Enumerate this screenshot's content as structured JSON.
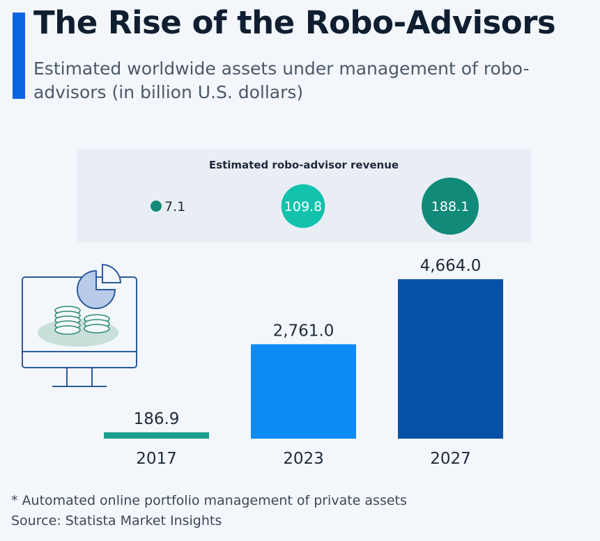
{
  "title": "The Rise of the Robo-Advisors",
  "subtitle": "Estimated worldwide assets under management of robo-advisors (in billion U.S. dollars)",
  "footnote": "* Automated online portfolio management of private assets",
  "source": "Source: Statista Market Insights",
  "colors": {
    "accent": "#0a66e0",
    "bar_2017": "#1d9e8c",
    "bar_2023": "#0d8bf5",
    "bar_2027": "#0451a8",
    "rev_2017": "#168a7a",
    "rev_2023": "#12c2ad",
    "rev_2027": "#128a7a"
  },
  "chart_data": [
    {
      "type": "bar",
      "title": "",
      "categories": [
        "2017",
        "2023",
        "2027"
      ],
      "values": [
        186.9,
        2761.0,
        4664.0
      ],
      "labels": [
        "186.9",
        "2,761.0",
        "4,664.0"
      ],
      "ylim": [
        0,
        4664.0
      ],
      "grid": false
    },
    {
      "type": "bubble",
      "title": "Estimated robo-advisor revenue",
      "categories": [
        "2017",
        "2023",
        "2027"
      ],
      "values": [
        7.1,
        109.8,
        188.1
      ],
      "labels": [
        "7.1",
        "109.8",
        "188.1"
      ]
    }
  ],
  "icon": "computer-monitor-with-coins-and-pie-chart-icon"
}
